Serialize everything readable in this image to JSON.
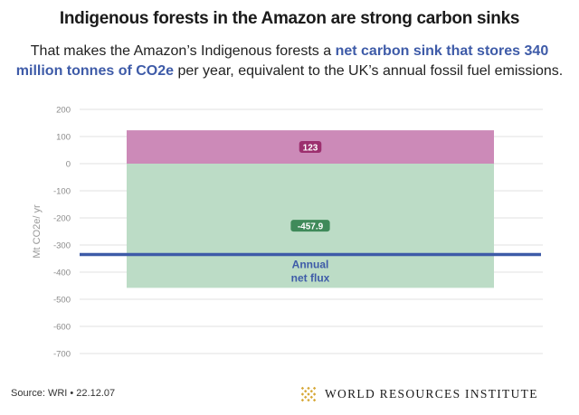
{
  "chart_data": {
    "type": "bar",
    "title": "Indigenous forests in the Amazon are strong carbon sinks",
    "subtitle": {
      "pre": "That makes the Amazon’s Indigenous forests a",
      "highlight": "net carbon sink that stores 340 million tonnes of CO2e",
      "post": "per year, equivalent to the UK’s annual fossil fuel emissions."
    },
    "ylabel": "Mt CO2e/ yr",
    "ylim": [
      -700,
      200
    ],
    "yticks": [
      200,
      100,
      0,
      -100,
      -200,
      -300,
      -400,
      -500,
      -600,
      -700
    ],
    "grid": true,
    "segments": [
      {
        "name": "emissions",
        "value": 123,
        "label": "123",
        "color": "#cc8ab8",
        "label_color": "#9c2f6e"
      },
      {
        "name": "removals",
        "value": -457.9,
        "label": "-457.9",
        "color": "#bcdcc6",
        "label_color": "#3f8a5a"
      }
    ],
    "net_flux": {
      "value": -334.9,
      "label_line1": "Annual",
      "label_line2": "net flux",
      "color": "#3e5ba8"
    }
  },
  "footer": {
    "source": "Source: WRI • 22.12.07",
    "brand": "WORLD RESOURCES INSTITUTE",
    "brand_color": "#d6a735",
    "logo_icon": "wri-diamond-logo-icon"
  }
}
